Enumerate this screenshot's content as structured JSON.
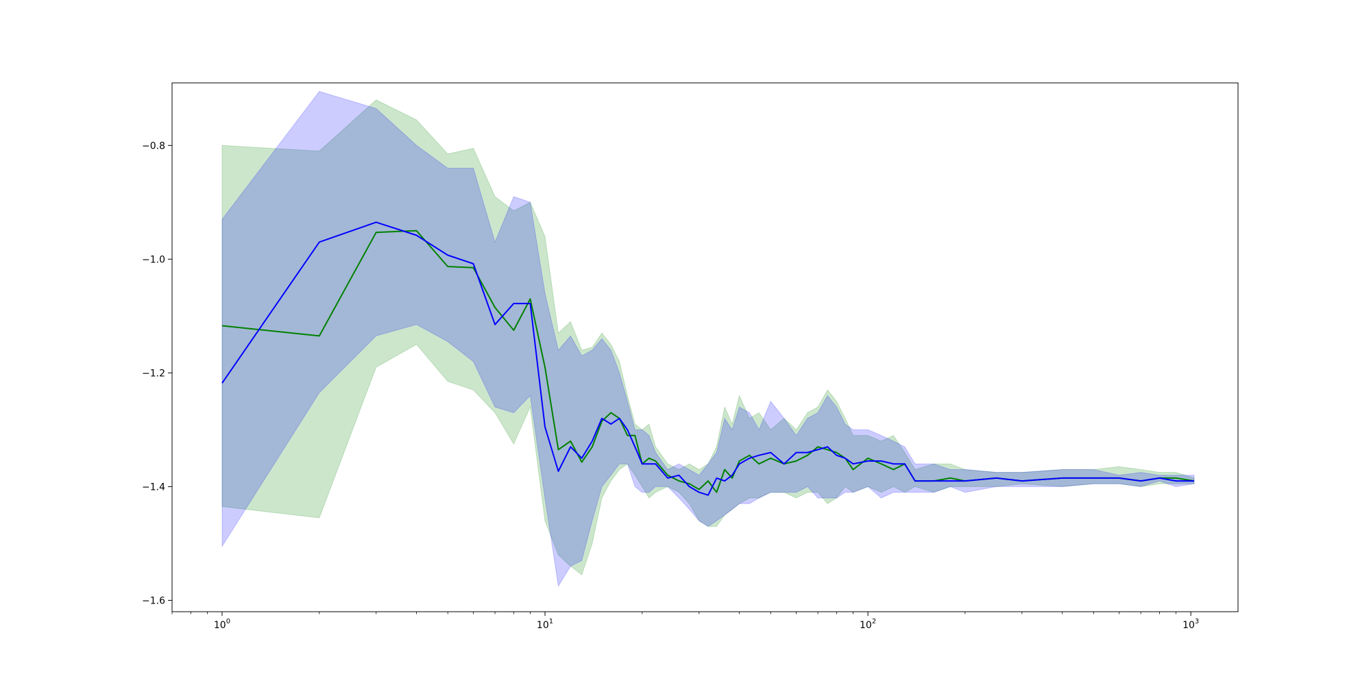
{
  "chart_data": {
    "type": "line",
    "title": "",
    "xlabel": "",
    "ylabel": "",
    "xscale": "log",
    "xlim": [
      0.7,
      1400
    ],
    "ylim": [
      -1.62,
      -0.69
    ],
    "grid": false,
    "x_ticks": [
      {
        "value": 1,
        "base": "10",
        "exp": "0"
      },
      {
        "value": 10,
        "base": "10",
        "exp": "1"
      },
      {
        "value": 100,
        "base": "10",
        "exp": "2"
      },
      {
        "value": 1000,
        "base": "10",
        "exp": "3"
      }
    ],
    "y_ticks": [
      {
        "value": -1.6,
        "label": "−1.6"
      },
      {
        "value": -1.4,
        "label": "−1.4"
      },
      {
        "value": -1.2,
        "label": "−1.2"
      },
      {
        "value": -1.0,
        "label": "−1.0"
      },
      {
        "value": -0.8,
        "label": "−0.8"
      }
    ],
    "series": [
      {
        "color": "#008000",
        "band_color": "#008000",
        "band_opacity": 0.2,
        "x": [
          1,
          2,
          3,
          4,
          5,
          6,
          7,
          8,
          9,
          10,
          11,
          12,
          13,
          14,
          15,
          16,
          17,
          18,
          19,
          20,
          21,
          22,
          24,
          26,
          28,
          30,
          32,
          34,
          36,
          38,
          40,
          43,
          46,
          50,
          55,
          60,
          65,
          70,
          75,
          80,
          85,
          90,
          100,
          110,
          120,
          130,
          140,
          160,
          180,
          200,
          250,
          300,
          400,
          500,
          600,
          700,
          800,
          900,
          1024
        ],
        "y": [
          -1.117,
          -1.135,
          -0.953,
          -0.95,
          -1.013,
          -1.015,
          -1.085,
          -1.125,
          -1.07,
          -1.19,
          -1.335,
          -1.32,
          -1.357,
          -1.33,
          -1.285,
          -1.27,
          -1.28,
          -1.31,
          -1.31,
          -1.36,
          -1.35,
          -1.355,
          -1.38,
          -1.39,
          -1.395,
          -1.405,
          -1.39,
          -1.41,
          -1.37,
          -1.385,
          -1.355,
          -1.345,
          -1.36,
          -1.35,
          -1.36,
          -1.355,
          -1.345,
          -1.33,
          -1.335,
          -1.34,
          -1.35,
          -1.37,
          -1.35,
          -1.36,
          -1.37,
          -1.36,
          -1.39,
          -1.39,
          -1.385,
          -1.39,
          -1.385,
          -1.39,
          -1.385,
          -1.385,
          -1.385,
          -1.39,
          -1.385,
          -1.385,
          -1.39
        ],
        "lower": [
          -1.435,
          -1.455,
          -1.19,
          -1.15,
          -1.215,
          -1.23,
          -1.27,
          -1.325,
          -1.26,
          -1.46,
          -1.52,
          -1.54,
          -1.555,
          -1.5,
          -1.42,
          -1.39,
          -1.37,
          -1.36,
          -1.38,
          -1.4,
          -1.42,
          -1.41,
          -1.4,
          -1.41,
          -1.43,
          -1.46,
          -1.47,
          -1.47,
          -1.45,
          -1.44,
          -1.43,
          -1.42,
          -1.42,
          -1.41,
          -1.41,
          -1.42,
          -1.41,
          -1.41,
          -1.43,
          -1.42,
          -1.4,
          -1.41,
          -1.4,
          -1.41,
          -1.4,
          -1.41,
          -1.4,
          -1.41,
          -1.4,
          -1.4,
          -1.4,
          -1.395,
          -1.4,
          -1.395,
          -1.395,
          -1.4,
          -1.395,
          -1.395,
          -1.395
        ],
        "upper": [
          -0.8,
          -0.81,
          -0.72,
          -0.755,
          -0.815,
          -0.805,
          -0.89,
          -0.915,
          -0.9,
          -0.96,
          -1.13,
          -1.11,
          -1.16,
          -1.155,
          -1.13,
          -1.15,
          -1.18,
          -1.24,
          -1.29,
          -1.3,
          -1.29,
          -1.33,
          -1.36,
          -1.37,
          -1.36,
          -1.37,
          -1.36,
          -1.33,
          -1.26,
          -1.29,
          -1.24,
          -1.28,
          -1.27,
          -1.3,
          -1.28,
          -1.3,
          -1.27,
          -1.26,
          -1.23,
          -1.25,
          -1.28,
          -1.31,
          -1.31,
          -1.32,
          -1.31,
          -1.34,
          -1.37,
          -1.36,
          -1.36,
          -1.37,
          -1.375,
          -1.375,
          -1.37,
          -1.37,
          -1.365,
          -1.37,
          -1.375,
          -1.375,
          -1.385
        ]
      },
      {
        "color": "#0000ff",
        "band_color": "#0000ff",
        "band_opacity": 0.2,
        "x": [
          1,
          2,
          3,
          4,
          5,
          6,
          7,
          8,
          9,
          10,
          11,
          12,
          13,
          14,
          15,
          16,
          17,
          18,
          19,
          20,
          21,
          22,
          24,
          26,
          28,
          30,
          32,
          34,
          36,
          38,
          40,
          43,
          46,
          50,
          55,
          60,
          65,
          70,
          75,
          80,
          85,
          90,
          100,
          110,
          120,
          130,
          140,
          160,
          180,
          200,
          250,
          300,
          400,
          500,
          600,
          700,
          800,
          900,
          1024
        ],
        "y": [
          -1.218,
          -0.97,
          -0.935,
          -0.958,
          -0.993,
          -1.008,
          -1.115,
          -1.078,
          -1.078,
          -1.295,
          -1.373,
          -1.33,
          -1.35,
          -1.32,
          -1.28,
          -1.29,
          -1.28,
          -1.3,
          -1.33,
          -1.36,
          -1.36,
          -1.36,
          -1.385,
          -1.38,
          -1.4,
          -1.41,
          -1.415,
          -1.385,
          -1.39,
          -1.38,
          -1.36,
          -1.35,
          -1.345,
          -1.34,
          -1.36,
          -1.34,
          -1.34,
          -1.335,
          -1.33,
          -1.345,
          -1.35,
          -1.36,
          -1.355,
          -1.355,
          -1.36,
          -1.36,
          -1.39,
          -1.39,
          -1.39,
          -1.39,
          -1.385,
          -1.39,
          -1.385,
          -1.385,
          -1.385,
          -1.39,
          -1.385,
          -1.39,
          -1.39
        ],
        "lower": [
          -1.505,
          -1.235,
          -1.135,
          -1.115,
          -1.145,
          -1.18,
          -1.26,
          -1.27,
          -1.24,
          -1.42,
          -1.575,
          -1.54,
          -1.53,
          -1.46,
          -1.4,
          -1.38,
          -1.36,
          -1.36,
          -1.4,
          -1.41,
          -1.41,
          -1.4,
          -1.4,
          -1.42,
          -1.44,
          -1.46,
          -1.47,
          -1.46,
          -1.45,
          -1.44,
          -1.43,
          -1.43,
          -1.42,
          -1.41,
          -1.41,
          -1.41,
          -1.4,
          -1.42,
          -1.42,
          -1.42,
          -1.41,
          -1.41,
          -1.4,
          -1.42,
          -1.41,
          -1.41,
          -1.41,
          -1.41,
          -1.4,
          -1.41,
          -1.4,
          -1.4,
          -1.4,
          -1.395,
          -1.395,
          -1.4,
          -1.39,
          -1.4,
          -1.395
        ],
        "upper": [
          -0.93,
          -0.705,
          -0.735,
          -0.8,
          -0.84,
          -0.84,
          -0.97,
          -0.89,
          -0.9,
          -1.06,
          -1.16,
          -1.135,
          -1.17,
          -1.16,
          -1.14,
          -1.16,
          -1.2,
          -1.25,
          -1.3,
          -1.3,
          -1.31,
          -1.34,
          -1.37,
          -1.36,
          -1.37,
          -1.38,
          -1.36,
          -1.34,
          -1.28,
          -1.3,
          -1.26,
          -1.27,
          -1.3,
          -1.25,
          -1.28,
          -1.31,
          -1.28,
          -1.27,
          -1.24,
          -1.26,
          -1.29,
          -1.3,
          -1.3,
          -1.31,
          -1.32,
          -1.33,
          -1.36,
          -1.36,
          -1.37,
          -1.37,
          -1.375,
          -1.375,
          -1.37,
          -1.37,
          -1.38,
          -1.375,
          -1.38,
          -1.38,
          -1.38
        ]
      }
    ]
  }
}
